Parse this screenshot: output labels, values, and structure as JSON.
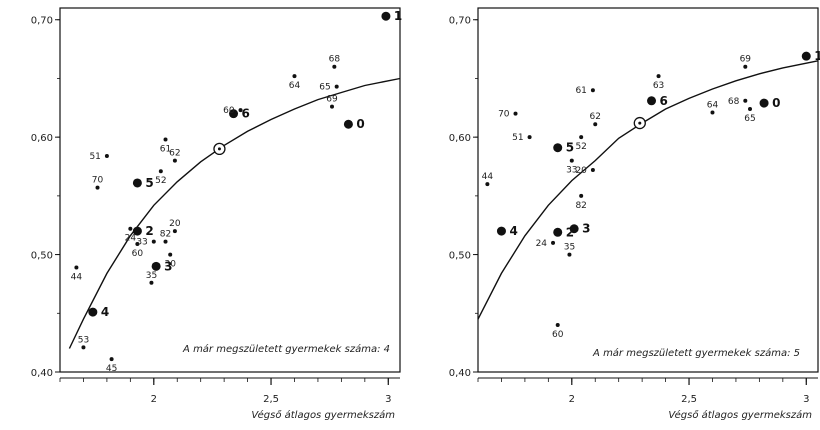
{
  "chart_data": [
    {
      "type": "scatter",
      "note": "A már megszületett gyermekek száma: 4",
      "xlabel": "Végső átlagos gyermekszám",
      "xlim": [
        1.6,
        3.05
      ],
      "ylim": [
        0.4,
        0.71
      ],
      "x_ticks": [
        {
          "v": 2,
          "label": "2"
        },
        {
          "v": 2.5,
          "label": "2,5"
        },
        {
          "v": 3,
          "label": "3"
        }
      ],
      "y_ticks": [
        {
          "v": 0.4,
          "label": "0,40"
        },
        {
          "v": 0.5,
          "label": "0,50"
        },
        {
          "v": 0.6,
          "label": "0,60"
        },
        {
          "v": 0.7,
          "label": "0,70"
        }
      ],
      "curve": [
        [
          1.64,
          0.42
        ],
        [
          1.7,
          0.445
        ],
        [
          1.8,
          0.484
        ],
        [
          1.9,
          0.516
        ],
        [
          2.0,
          0.542
        ],
        [
          2.1,
          0.562
        ],
        [
          2.2,
          0.579
        ],
        [
          2.3,
          0.593
        ],
        [
          2.4,
          0.605
        ],
        [
          2.5,
          0.615
        ],
        [
          2.6,
          0.624
        ],
        [
          2.7,
          0.632
        ],
        [
          2.8,
          0.638
        ],
        [
          2.9,
          0.644
        ],
        [
          3.0,
          0.648
        ],
        [
          3.05,
          0.65
        ]
      ],
      "reference_point": {
        "x": 2.28,
        "y": 0.59
      },
      "points": [
        {
          "label": "1",
          "x": 2.99,
          "y": 0.703,
          "big": true
        },
        {
          "label": "68",
          "x": 2.77,
          "y": 0.66,
          "big": false
        },
        {
          "label": "64",
          "x": 2.6,
          "y": 0.652,
          "big": false
        },
        {
          "label": "65",
          "x": 2.78,
          "y": 0.643,
          "big": false
        },
        {
          "label": "69",
          "x": 2.76,
          "y": 0.626,
          "big": false
        },
        {
          "label": "6",
          "x": 2.34,
          "y": 0.62,
          "big": true
        },
        {
          "label": "60",
          "x": 2.37,
          "y": 0.623,
          "big": false
        },
        {
          "label": "0",
          "x": 2.83,
          "y": 0.611,
          "big": true
        },
        {
          "label": "61",
          "x": 2.05,
          "y": 0.598,
          "big": false
        },
        {
          "label": "51",
          "x": 1.8,
          "y": 0.584,
          "big": false
        },
        {
          "label": "62",
          "x": 2.09,
          "y": 0.58,
          "big": false
        },
        {
          "label": "52",
          "x": 2.03,
          "y": 0.571,
          "big": false
        },
        {
          "label": "5",
          "x": 1.93,
          "y": 0.561,
          "big": true
        },
        {
          "label": "70",
          "x": 1.76,
          "y": 0.557,
          "big": false
        },
        {
          "label": "24",
          "x": 1.9,
          "y": 0.522,
          "big": false
        },
        {
          "label": "2",
          "x": 1.93,
          "y": 0.52,
          "big": true
        },
        {
          "label": "20",
          "x": 2.09,
          "y": 0.52,
          "big": false
        },
        {
          "label": "60",
          "x": 1.93,
          "y": 0.509,
          "big": false
        },
        {
          "label": "33",
          "x": 2.0,
          "y": 0.511,
          "big": false
        },
        {
          "label": "82",
          "x": 2.05,
          "y": 0.511,
          "big": false
        },
        {
          "label": "30",
          "x": 2.07,
          "y": 0.5,
          "big": false
        },
        {
          "label": "3",
          "x": 2.01,
          "y": 0.49,
          "big": true
        },
        {
          "label": "35",
          "x": 1.99,
          "y": 0.476,
          "big": false
        },
        {
          "label": "44",
          "x": 1.67,
          "y": 0.489,
          "big": false
        },
        {
          "label": "4",
          "x": 1.74,
          "y": 0.451,
          "big": true
        },
        {
          "label": "53",
          "x": 1.7,
          "y": 0.421,
          "big": false
        },
        {
          "label": "45",
          "x": 1.82,
          "y": 0.411,
          "big": false
        }
      ]
    },
    {
      "type": "scatter",
      "note": "A már megszületett gyermekek száma: 5",
      "xlabel": "Végső átlagos gyermekszám",
      "xlim": [
        1.6,
        3.05
      ],
      "ylim": [
        0.4,
        0.71
      ],
      "x_ticks": [
        {
          "v": 2,
          "label": "2"
        },
        {
          "v": 2.5,
          "label": "2,5"
        },
        {
          "v": 3,
          "label": "3"
        }
      ],
      "y_ticks": [
        {
          "v": 0.4,
          "label": "0,40"
        },
        {
          "v": 0.5,
          "label": "0,50"
        },
        {
          "v": 0.6,
          "label": "0,60"
        },
        {
          "v": 0.7,
          "label": "0,70"
        }
      ],
      "curve": [
        [
          1.6,
          0.445
        ],
        [
          1.7,
          0.484
        ],
        [
          1.8,
          0.516
        ],
        [
          1.9,
          0.542
        ],
        [
          2.0,
          0.563
        ],
        [
          2.1,
          0.58
        ],
        [
          2.2,
          0.599
        ],
        [
          2.3,
          0.612
        ],
        [
          2.4,
          0.624
        ],
        [
          2.5,
          0.633
        ],
        [
          2.6,
          0.641
        ],
        [
          2.7,
          0.648
        ],
        [
          2.8,
          0.654
        ],
        [
          2.9,
          0.659
        ],
        [
          3.05,
          0.665
        ]
      ],
      "reference_point": {
        "x": 2.29,
        "y": 0.612
      },
      "points": [
        {
          "label": "1",
          "x": 3.0,
          "y": 0.669,
          "big": true
        },
        {
          "label": "69",
          "x": 2.74,
          "y": 0.66,
          "big": false
        },
        {
          "label": "63",
          "x": 2.37,
          "y": 0.652,
          "big": false
        },
        {
          "label": "61",
          "x": 2.09,
          "y": 0.64,
          "big": false
        },
        {
          "label": "6",
          "x": 2.34,
          "y": 0.631,
          "big": true
        },
        {
          "label": "0",
          "x": 2.82,
          "y": 0.629,
          "big": true
        },
        {
          "label": "68",
          "x": 2.74,
          "y": 0.631,
          "big": false
        },
        {
          "label": "64",
          "x": 2.6,
          "y": 0.621,
          "big": false
        },
        {
          "label": "65",
          "x": 2.76,
          "y": 0.624,
          "big": false
        },
        {
          "label": "70",
          "x": 1.76,
          "y": 0.62,
          "big": false
        },
        {
          "label": "62",
          "x": 2.1,
          "y": 0.611,
          "big": false
        },
        {
          "label": "52",
          "x": 2.04,
          "y": 0.6,
          "big": false
        },
        {
          "label": "51",
          "x": 1.82,
          "y": 0.6,
          "big": false
        },
        {
          "label": "5",
          "x": 1.94,
          "y": 0.591,
          "big": true
        },
        {
          "label": "33",
          "x": 2.0,
          "y": 0.58,
          "big": false
        },
        {
          "label": "20",
          "x": 2.09,
          "y": 0.572,
          "big": false
        },
        {
          "label": "44",
          "x": 1.64,
          "y": 0.56,
          "big": false
        },
        {
          "label": "82",
          "x": 2.04,
          "y": 0.55,
          "big": false
        },
        {
          "label": "4",
          "x": 1.7,
          "y": 0.52,
          "big": true
        },
        {
          "label": "2",
          "x": 1.94,
          "y": 0.519,
          "big": true
        },
        {
          "label": "3",
          "x": 2.01,
          "y": 0.522,
          "big": true
        },
        {
          "label": "24",
          "x": 1.92,
          "y": 0.51,
          "big": false
        },
        {
          "label": "35",
          "x": 1.99,
          "y": 0.5,
          "big": false
        },
        {
          "label": "60",
          "x": 1.94,
          "y": 0.44,
          "big": false
        }
      ]
    }
  ]
}
